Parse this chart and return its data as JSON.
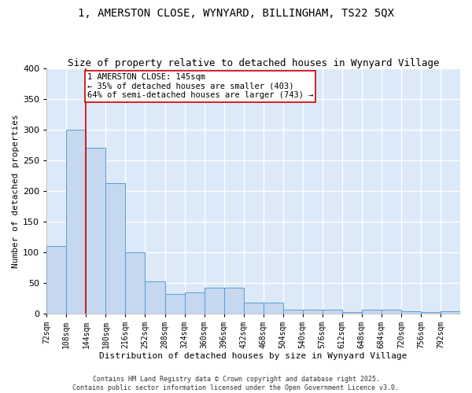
{
  "title": "1, AMERSTON CLOSE, WYNYARD, BILLINGHAM, TS22 5QX",
  "subtitle": "Size of property relative to detached houses in Wynyard Village",
  "xlabel": "Distribution of detached houses by size in Wynyard Village",
  "ylabel": "Number of detached properties",
  "bar_values": [
    110,
    300,
    270,
    213,
    100,
    52,
    32,
    35,
    42,
    42,
    18,
    18,
    7,
    6,
    6,
    2,
    7,
    6,
    4,
    3,
    4
  ],
  "bin_edges": [
    72,
    108,
    144,
    180,
    216,
    252,
    288,
    324,
    360,
    396,
    432,
    468,
    504,
    540,
    576,
    612,
    648,
    684,
    720,
    756,
    792,
    828
  ],
  "tick_labels": [
    "72sqm",
    "108sqm",
    "144sqm",
    "180sqm",
    "216sqm",
    "252sqm",
    "288sqm",
    "324sqm",
    "360sqm",
    "396sqm",
    "432sqm",
    "468sqm",
    "504sqm",
    "540sqm",
    "576sqm",
    "612sqm",
    "648sqm",
    "684sqm",
    "720sqm",
    "756sqm",
    "792sqm"
  ],
  "bar_color": "#c5d8f0",
  "bar_edge_color": "#5b9bd5",
  "bg_color": "#dce9f8",
  "grid_color": "#ffffff",
  "vline_x": 144,
  "vline_color": "#cc0000",
  "annotation_text": "1 AMERSTON CLOSE: 145sqm\n← 35% of detached houses are smaller (403)\n64% of semi-detached houses are larger (743) →",
  "annotation_box_color": "#ffffff",
  "annotation_box_edge": "#cc0000",
  "ylim": [
    0,
    400
  ],
  "yticks": [
    0,
    50,
    100,
    150,
    200,
    250,
    300,
    350,
    400
  ],
  "copyright_text": "Contains HM Land Registry data © Crown copyright and database right 2025.\nContains public sector information licensed under the Open Government Licence v3.0.",
  "title_fontsize": 10,
  "subtitle_fontsize": 9,
  "xlabel_fontsize": 8,
  "ylabel_fontsize": 8,
  "annot_fontsize": 7.5,
  "tick_fontsize": 7,
  "ytick_fontsize": 8,
  "copyright_fontsize": 6
}
